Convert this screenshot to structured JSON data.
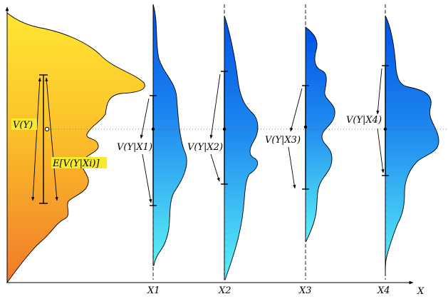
{
  "labels": {
    "vy": "V(Y)",
    "evy": "E[V(Y|Xi)]",
    "vyx1": "V(Y|X1)",
    "vyx2": "V(Y|X2)",
    "vyx3": "V(Y|X3)",
    "vyx4": "V(Y|X4)",
    "x1": "X1",
    "x2": "X2",
    "x3": "X3",
    "x4": "X4",
    "xaxis": "X"
  },
  "colors": {
    "main_top": "#ffe633",
    "main_bottom": "#f07a2a",
    "cond_top": "#0055e6",
    "cond_bottom": "#5cf0f5",
    "highlight": "#f7ea2a",
    "axis": "#000000"
  }
}
